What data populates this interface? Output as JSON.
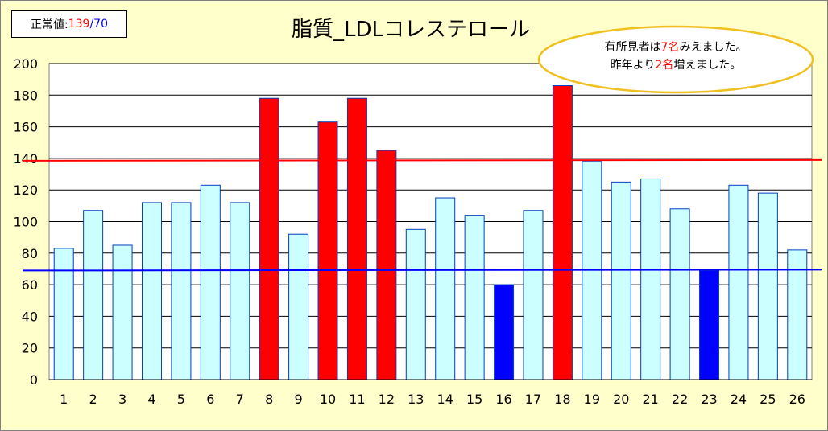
{
  "legend": {
    "label": "正常値:",
    "upper": "139",
    "sep": "/",
    "lower": "70"
  },
  "note": {
    "line1_a": "有所見者は",
    "line1_num": "7名",
    "line1_b": "みえました。",
    "line2_a": "昨年より",
    "line2_num": "2名",
    "line2_b": "増えました。"
  },
  "colors": {
    "normal": "#ccffff",
    "high": "#ff0000",
    "low": "#0000ff",
    "upper_line": "#ff0000",
    "lower_line": "#0000ff",
    "bubble_border": "#f0c020",
    "accent_red": "#ff0000",
    "accent_blue": "#0000ff"
  },
  "chart_data": {
    "type": "bar",
    "title": "脂質_LDLコレステロール",
    "categories": [
      "1",
      "2",
      "3",
      "4",
      "5",
      "6",
      "7",
      "8",
      "9",
      "10",
      "11",
      "12",
      "13",
      "14",
      "15",
      "16",
      "17",
      "18",
      "19",
      "20",
      "21",
      "22",
      "23",
      "24",
      "25",
      "26"
    ],
    "values": [
      83,
      107,
      85,
      112,
      112,
      123,
      112,
      178,
      92,
      163,
      178,
      145,
      95,
      115,
      104,
      60,
      107,
      186,
      138,
      125,
      127,
      108,
      69,
      123,
      118,
      82
    ],
    "ylim": [
      0,
      200
    ],
    "yticks": [
      0,
      20,
      40,
      60,
      80,
      100,
      120,
      140,
      160,
      180,
      200
    ],
    "reference_lines": [
      {
        "value": 138,
        "color": "#ff0000"
      },
      {
        "value": 69,
        "color": "#0000ff"
      }
    ],
    "grid": true
  }
}
